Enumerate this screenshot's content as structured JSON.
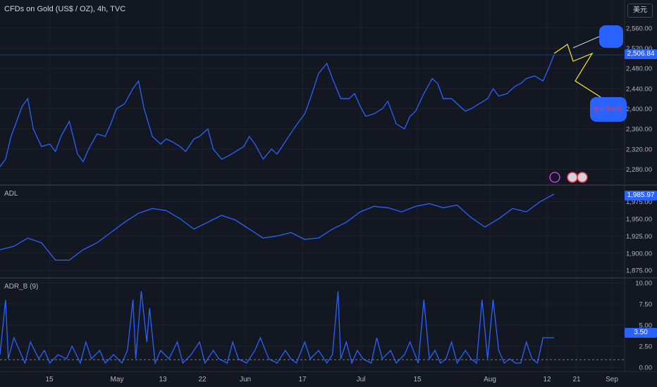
{
  "header": {
    "title": "CFDs on Gold (US$ / OZ), 4h, TVC",
    "currency": "美元"
  },
  "annotations": {
    "upper_note": "",
    "lower_note": "pull back"
  },
  "chart_data": [
    {
      "type": "line",
      "name": "price",
      "ylim": [
        2250,
        2585
      ],
      "yticks": [
        2280,
        2320,
        2360,
        2400,
        2440,
        2480,
        2520,
        2560
      ],
      "ytick_labels": [
        "2,280.00",
        "2,320.00",
        "2,360.00",
        "2,400.00",
        "2,440.00",
        "2,480.00",
        "2,520.00",
        "2,560.00"
      ],
      "last_value_label": "2,506.84",
      "color": "#2962ff",
      "x": [
        0,
        2,
        4,
        6,
        8,
        10,
        12,
        15,
        18,
        20,
        22,
        25,
        28,
        30,
        32,
        35,
        38,
        40,
        42,
        45,
        48,
        50,
        52,
        55,
        58,
        60,
        62,
        65,
        67,
        70,
        72,
        75,
        77,
        80,
        82,
        85,
        88,
        90,
        92,
        95,
        98,
        100,
        103,
        106,
        108,
        110,
        112,
        115,
        118,
        120,
        123,
        126,
        128,
        130,
        132,
        135,
        138,
        140,
        143,
        146,
        148,
        150,
        153,
        156,
        158,
        160,
        163,
        165,
        168,
        170,
        173,
        176,
        178,
        180,
        183,
        186,
        188,
        190,
        193,
        196,
        198,
        200
      ],
      "y": [
        2285,
        2300,
        2345,
        2375,
        2405,
        2420,
        2360,
        2325,
        2330,
        2315,
        2345,
        2375,
        2310,
        2295,
        2320,
        2350,
        2345,
        2370,
        2400,
        2410,
        2440,
        2455,
        2400,
        2345,
        2330,
        2340,
        2335,
        2325,
        2315,
        2340,
        2345,
        2360,
        2320,
        2300,
        2305,
        2315,
        2325,
        2345,
        2330,
        2300,
        2320,
        2310,
        2335,
        2360,
        2375,
        2390,
        2420,
        2470,
        2490,
        2460,
        2420,
        2420,
        2430,
        2405,
        2385,
        2390,
        2400,
        2415,
        2370,
        2360,
        2385,
        2395,
        2430,
        2460,
        2450,
        2420,
        2420,
        2410,
        2395,
        2400,
        2410,
        2420,
        2440,
        2425,
        2430,
        2445,
        2450,
        2460,
        2465,
        2455,
        2480,
        2506.84
      ]
    },
    {
      "type": "line",
      "name": "ADL",
      "ylim": [
        1865,
        1998
      ],
      "yticks": [
        1875,
        1900,
        1925,
        1950,
        1975
      ],
      "ytick_labels": [
        "1,875.00",
        "1,900.00",
        "1,925.00",
        "1,950.00",
        "1,975.00"
      ],
      "last_value_label": "1,985.97",
      "color": "#2962ff",
      "x": [
        0,
        5,
        10,
        15,
        20,
        25,
        30,
        35,
        40,
        45,
        50,
        55,
        60,
        65,
        70,
        75,
        80,
        85,
        90,
        95,
        100,
        105,
        110,
        115,
        120,
        125,
        130,
        135,
        140,
        145,
        150,
        155,
        160,
        165,
        170,
        175,
        180,
        185,
        190,
        195,
        200
      ],
      "y": [
        1905,
        1910,
        1922,
        1915,
        1890,
        1890,
        1905,
        1915,
        1930,
        1945,
        1958,
        1965,
        1962,
        1950,
        1935,
        1945,
        1955,
        1948,
        1935,
        1922,
        1925,
        1930,
        1920,
        1922,
        1935,
        1945,
        1960,
        1968,
        1966,
        1960,
        1968,
        1972,
        1966,
        1970,
        1952,
        1938,
        1950,
        1965,
        1960,
        1975,
        1985.97
      ]
    },
    {
      "type": "line",
      "name": "ADR_B (9)",
      "ylim": [
        -0.5,
        10.5
      ],
      "yticks": [
        0,
        2.5,
        5,
        7.5,
        10
      ],
      "ytick_labels": [
        "0.00",
        "2.50",
        "5.00",
        "7.50",
        "10.00"
      ],
      "last_value_label": "3.50",
      "color": "#2962ff",
      "x": [
        0,
        2,
        3,
        5,
        7,
        9,
        11,
        14,
        16,
        18,
        21,
        24,
        26,
        29,
        31,
        33,
        36,
        38,
        41,
        44,
        46,
        48,
        49,
        51,
        53,
        54,
        56,
        58,
        61,
        64,
        66,
        69,
        72,
        74,
        77,
        79,
        82,
        84,
        86,
        89,
        92,
        94,
        97,
        100,
        103,
        105,
        107,
        110,
        112,
        115,
        118,
        120,
        122,
        123,
        125,
        127,
        129,
        131,
        134,
        136,
        138,
        141,
        143,
        146,
        148,
        151,
        153,
        155,
        157,
        159,
        161,
        163,
        165,
        168,
        170,
        172,
        174,
        176,
        178,
        180,
        182,
        184,
        186,
        188,
        190,
        192,
        194,
        196,
        198,
        200
      ],
      "y": [
        1.5,
        8,
        1,
        3.5,
        2,
        0.5,
        3,
        1,
        2,
        0.5,
        1.5,
        1,
        2.5,
        0.5,
        3,
        1,
        2,
        0.5,
        1.5,
        0.5,
        2,
        8,
        1,
        9,
        3,
        7,
        0.5,
        2,
        1,
        3,
        0.5,
        1.5,
        3,
        0.5,
        2,
        1,
        0.5,
        3,
        1,
        0.5,
        2,
        3.5,
        1,
        0.5,
        2,
        1,
        0.5,
        3,
        1,
        2,
        0.5,
        1.5,
        9,
        1,
        3,
        0.5,
        2,
        1,
        0.5,
        3.5,
        1,
        2,
        0.5,
        1.5,
        3,
        0.5,
        8,
        1,
        2,
        0.5,
        1,
        3,
        0.5,
        2,
        1,
        0.5,
        8,
        1,
        8,
        2,
        0.5,
        1,
        0.5,
        0.5,
        3,
        1,
        0.5,
        3.5,
        3.5,
        3.5
      ]
    }
  ],
  "xaxis": {
    "labels": [
      "15",
      "May",
      "13",
      "22",
      "Jun",
      "17",
      "Jul",
      "15",
      "Aug",
      "12",
      "21",
      "Sep"
    ]
  }
}
